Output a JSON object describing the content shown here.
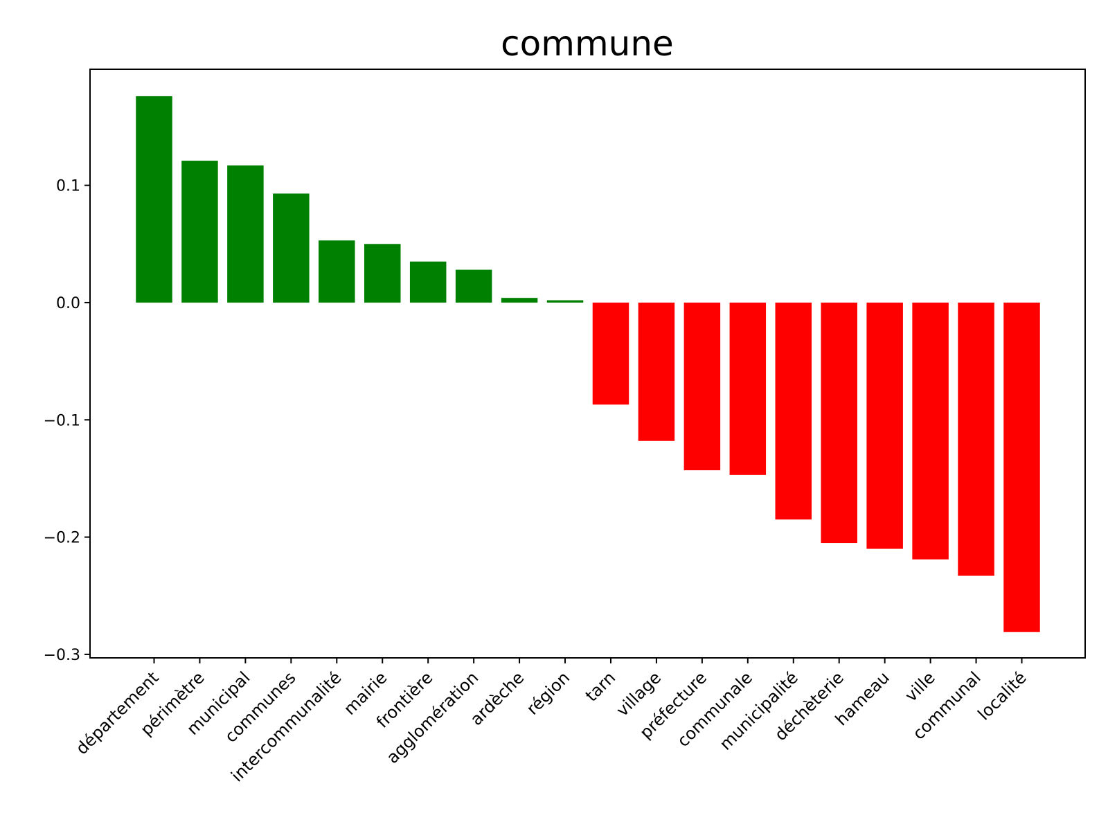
{
  "chart_data": {
    "type": "bar",
    "title": "commune",
    "xlabel": "",
    "ylabel": "",
    "ylim": [
      -0.303,
      0.199
    ],
    "yticks": [
      0.1,
      0.0,
      -0.1,
      -0.2,
      -0.3
    ],
    "ytick_labels": [
      "0.1",
      "0.0",
      "−0.1",
      "−0.2",
      "−0.3"
    ],
    "grid": false,
    "legend": "none",
    "positive_color": "#008000",
    "negative_color": "#ff0000",
    "categories": [
      "département",
      "périmètre",
      "municipal",
      "communes",
      "intercommunalité",
      "mairie",
      "frontière",
      "agglomération",
      "ardèche",
      "région",
      "tarn",
      "village",
      "préfecture",
      "communale",
      "municipalité",
      "déchèterie",
      "hameau",
      "ville",
      "communal",
      "localité"
    ],
    "values": [
      0.176,
      0.121,
      0.117,
      0.093,
      0.053,
      0.05,
      0.035,
      0.028,
      0.004,
      0.002,
      -0.087,
      -0.118,
      -0.143,
      -0.147,
      -0.185,
      -0.205,
      -0.21,
      -0.219,
      -0.233,
      -0.281
    ]
  }
}
